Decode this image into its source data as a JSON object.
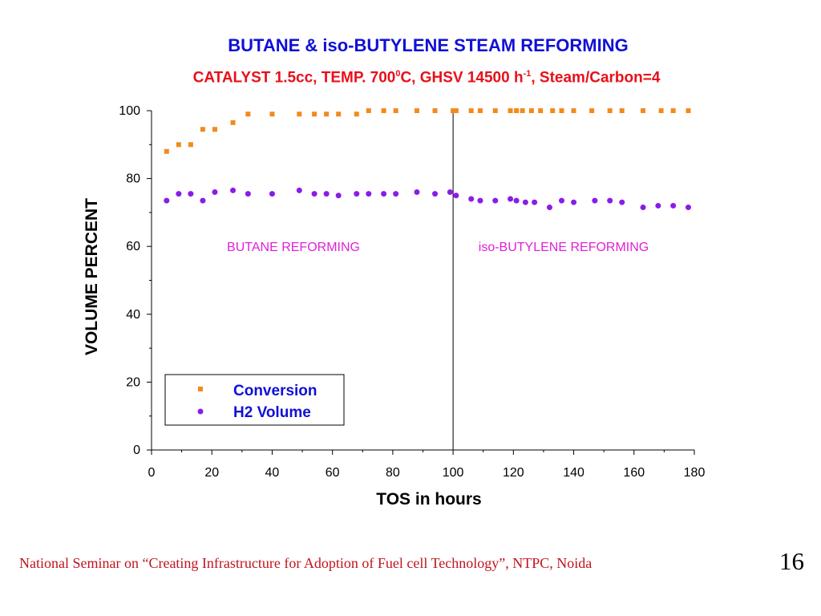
{
  "slide": {
    "title": "BUTANE & iso-BUTYLENE STEAM REFORMING",
    "subtitle": {
      "part1": "CATALYST 1.5cc, TEMP. 700",
      "sup1": "0",
      "part2": "C, GHSV 14500 h",
      "sup2": "-1",
      "part3": ", Steam/Carbon=4"
    },
    "footer": "National Seminar on “Creating Infrastructure for Adoption of Fuel cell Technology”,  NTPC,   Noida",
    "page_number": "16"
  },
  "colors": {
    "title": "#1010d8",
    "subtitle": "#e8101a",
    "conversion": "#f28a1e",
    "h2": "#8a1ce8",
    "annotation": "#e020d8",
    "legend_text": "#1010d8",
    "footer": "#c0141e"
  },
  "chart_data": {
    "type": "scatter",
    "xlabel": "TOS in hours",
    "ylabel": "VOLUME PERCENT",
    "xlim": [
      0,
      180
    ],
    "ylim": [
      0,
      100
    ],
    "xticks": [
      0,
      20,
      40,
      60,
      80,
      100,
      120,
      140,
      160,
      180
    ],
    "yticks": [
      0,
      20,
      40,
      60,
      80,
      100
    ],
    "grid": false,
    "legend_placement": "bottom-left",
    "vertical_line_x": 100,
    "annotations": [
      "BUTANE REFORMING",
      "iso-BUTYLENE REFORMING"
    ],
    "series": [
      {
        "name": "Conversion",
        "marker": "square",
        "x": [
          5,
          9,
          13,
          17,
          21,
          27,
          32,
          40,
          49,
          54,
          58,
          62,
          68,
          72,
          77,
          81,
          88,
          94,
          100,
          101,
          106,
          109,
          114,
          119,
          121,
          123,
          126,
          129,
          133,
          136,
          140,
          146,
          152,
          156,
          163,
          169,
          173,
          178
        ],
        "y": [
          88,
          90,
          90,
          94.5,
          94.5,
          96.5,
          99,
          99,
          99,
          99,
          99,
          99,
          99,
          100,
          100,
          100,
          100,
          100,
          100,
          100,
          100,
          100,
          100,
          100,
          100,
          100,
          100,
          100,
          100,
          100,
          100,
          100,
          100,
          100,
          100,
          100,
          100,
          100
        ]
      },
      {
        "name": "H2 Volume",
        "marker": "circle",
        "x": [
          5,
          9,
          13,
          17,
          21,
          27,
          32,
          40,
          49,
          54,
          58,
          62,
          68,
          72,
          77,
          81,
          88,
          94,
          99,
          101,
          106,
          109,
          114,
          119,
          121,
          124,
          127,
          132,
          136,
          140,
          147,
          152,
          156,
          163,
          168,
          173,
          178
        ],
        "y": [
          73.5,
          75.5,
          75.5,
          73.5,
          76,
          76.5,
          75.5,
          75.5,
          76.5,
          75.5,
          75.5,
          75,
          75.5,
          75.5,
          75.5,
          75.5,
          76,
          75.5,
          76,
          75,
          74,
          73.5,
          73.5,
          74,
          73.5,
          73,
          73,
          71.5,
          73.5,
          73,
          73.5,
          73.5,
          73,
          71.5,
          72,
          72,
          71.5
        ]
      }
    ]
  }
}
